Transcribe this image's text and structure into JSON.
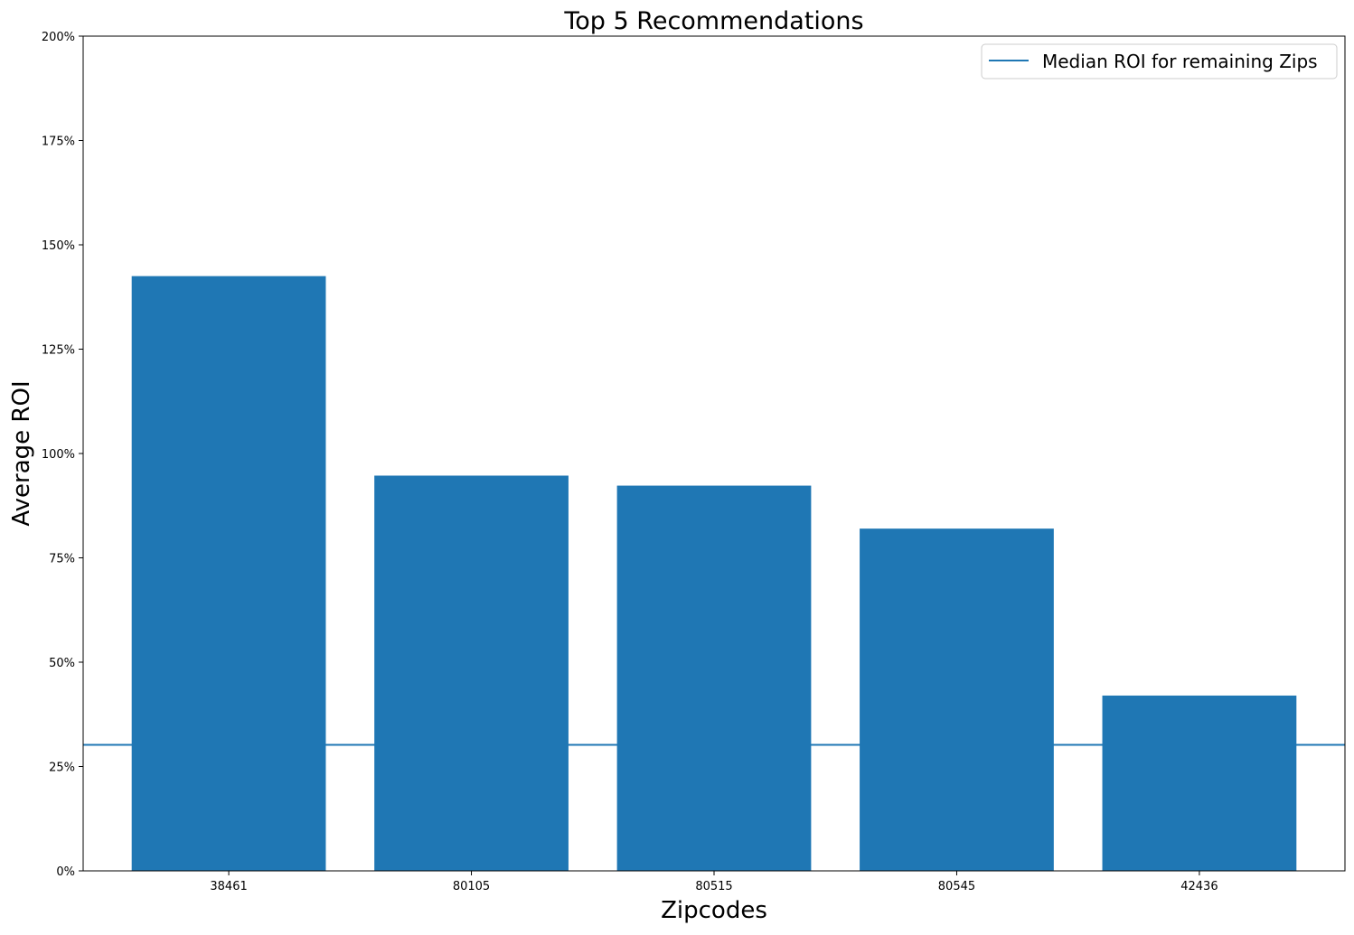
{
  "chart_data": {
    "type": "bar",
    "title": "Top 5 Recommendations",
    "xlabel": "Zipcodes",
    "ylabel": "Average ROI",
    "categories": [
      "38461",
      "80105",
      "80515",
      "80545",
      "42436"
    ],
    "values": [
      142.5,
      94.7,
      92.3,
      82.0,
      42.0
    ],
    "ylim": [
      0,
      200
    ],
    "yticks": [
      0,
      25,
      50,
      75,
      100,
      125,
      150,
      175,
      200
    ],
    "ytick_labels": [
      "0%",
      "25%",
      "50%",
      "75%",
      "100%",
      "125%",
      "150%",
      "175%",
      "200%"
    ],
    "reference_line": {
      "name": "Median ROI for remaining Zips",
      "value": 30.2
    },
    "legend": {
      "placement": "top-right",
      "entries": [
        "Median ROI for remaining Zips"
      ]
    },
    "bar_color": "#1f77b4",
    "line_color": "#1f77b4",
    "grid": false
  }
}
